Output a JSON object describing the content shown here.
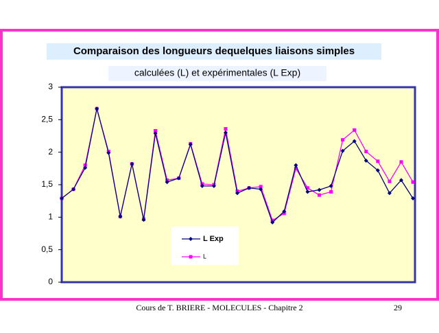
{
  "chart_data": {
    "type": "line",
    "title": "Comparaison des longueurs dequelques liaisons simples",
    "subtitle": "calculées (L) et expérimentales (L Exp)",
    "series": [
      {
        "name": "L Exp",
        "color": "#000080",
        "marker": "diamond",
        "values": [
          1.29,
          1.43,
          1.76,
          2.67,
          1.99,
          1.01,
          1.82,
          0.96,
          2.29,
          1.54,
          1.6,
          2.12,
          1.48,
          1.48,
          2.3,
          1.37,
          1.45,
          1.43,
          0.92,
          1.09,
          1.8,
          1.39,
          1.42,
          1.48,
          2.02,
          2.17,
          1.87,
          1.72,
          1.37,
          1.57,
          1.29
        ]
      },
      {
        "name": "L",
        "color": "#ff00ff",
        "marker": "square",
        "values": [
          1.29,
          1.43,
          1.8,
          2.67,
          2.01,
          1.01,
          1.82,
          0.97,
          2.33,
          1.57,
          1.6,
          2.13,
          1.51,
          1.5,
          2.36,
          1.4,
          1.45,
          1.47,
          0.95,
          1.06,
          1.75,
          1.45,
          1.34,
          1.39,
          2.19,
          2.34,
          2.01,
          1.86,
          1.55,
          1.85,
          1.54
        ]
      }
    ],
    "ylim": [
      0,
      3
    ],
    "yticks": [
      0,
      {
        "value": 0.5,
        "label": "0,5"
      },
      1,
      {
        "value": 1.5,
        "label": "1,5"
      },
      2,
      {
        "value": 2.5,
        "label": "2,5"
      },
      3
    ],
    "legend": "bottom-center"
  },
  "footer": {
    "text": "Cours de T. BRIERE - MOLECULES - Chapitre 2",
    "page": "29"
  }
}
